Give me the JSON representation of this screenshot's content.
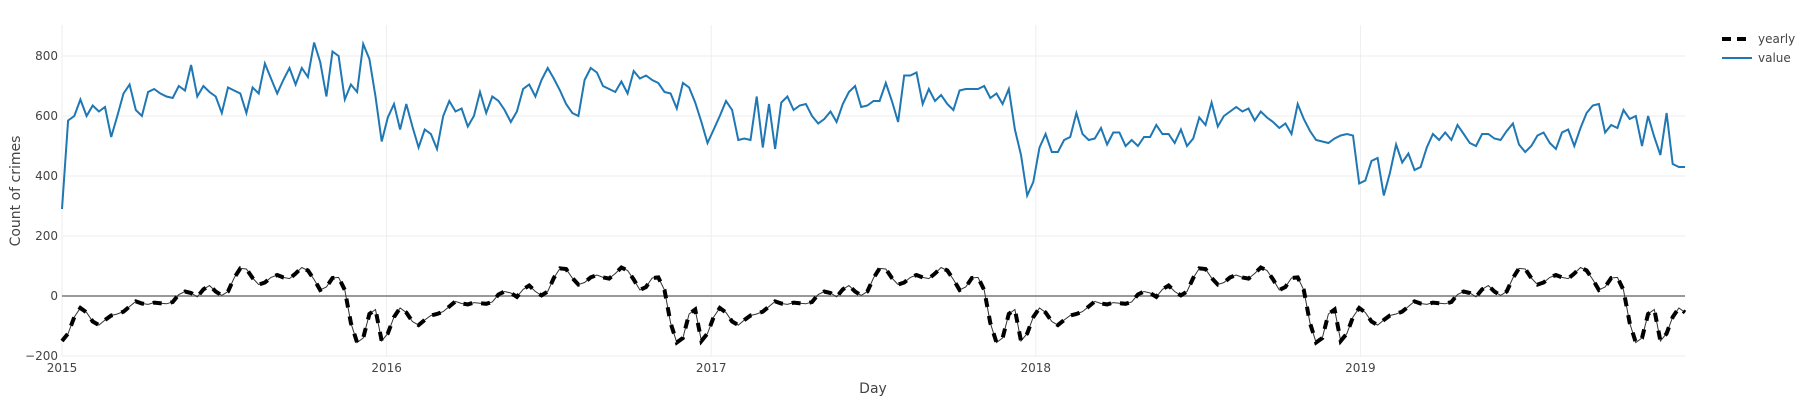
{
  "chart_data": {
    "type": "line",
    "title": "",
    "xlabel": "Day",
    "ylabel": "Count of crimes",
    "xlim": [
      "2015-01-01",
      "2019-12-31"
    ],
    "ylim": [
      -200,
      900
    ],
    "x_ticks": [
      "2015",
      "2016",
      "2017",
      "2018",
      "2019"
    ],
    "y_ticks": [
      -200,
      0,
      200,
      400,
      600,
      800
    ],
    "y_tick_labels": [
      "−200",
      "0",
      "200",
      "400",
      "600",
      "800"
    ],
    "grid": true,
    "zero_line": true,
    "legend_position": "top-right",
    "colors": {
      "value": "#1f77b4",
      "yearly": "#000000",
      "grid": "#eeeeee",
      "zero_line": "#999999",
      "text": "#444444"
    },
    "x_frequency": "weekly",
    "series": [
      {
        "name": "yearly",
        "style": "dashed-thick-black",
        "values_per_week_of_year": [
          -150,
          -125,
          -70,
          -40,
          -55,
          -85,
          -97,
          -80,
          -65,
          -60,
          -52,
          -35,
          -18,
          -25,
          -28,
          -22,
          -24,
          -26,
          -20,
          5,
          15,
          10,
          -3,
          22,
          35,
          15,
          2,
          15,
          60,
          92,
          90,
          60,
          38,
          45,
          62,
          70,
          62,
          58,
          75,
          95,
          85,
          55,
          20,
          30,
          60,
          62,
          20,
          -90,
          -155,
          -140,
          -60,
          -45
        ]
      },
      {
        "name": "value",
        "style": "solid-blue",
        "values": [
          290,
          585,
          600,
          655,
          600,
          635,
          615,
          630,
          530,
          600,
          675,
          705,
          620,
          600,
          680,
          690,
          675,
          665,
          660,
          700,
          685,
          770,
          665,
          700,
          680,
          665,
          610,
          695,
          685,
          675,
          610,
          695,
          675,
          775,
          725,
          675,
          720,
          760,
          705,
          760,
          730,
          845,
          780,
          665,
          815,
          800,
          655,
          705,
          680,
          840,
          790,
          665,
          515,
          595,
          640,
          555,
          640,
          565,
          495,
          555,
          540,
          490,
          600,
          650,
          615,
          625,
          565,
          600,
          680,
          610,
          665,
          650,
          620,
          580,
          615,
          690,
          705,
          665,
          720,
          760,
          725,
          685,
          640,
          610,
          600,
          720,
          760,
          745,
          700,
          690,
          680,
          715,
          675,
          750,
          725,
          735,
          720,
          710,
          680,
          675,
          625,
          710,
          695,
          645,
          580,
          510,
          555,
          600,
          650,
          620,
          520,
          525,
          520,
          665,
          495,
          640,
          490,
          645,
          665,
          620,
          635,
          640,
          600,
          575,
          590,
          615,
          580,
          640,
          680,
          700,
          630,
          635,
          650,
          650,
          710,
          650,
          580,
          735,
          735,
          745,
          640,
          690,
          650,
          670,
          640,
          620,
          685,
          690,
          690,
          690,
          700,
          660,
          675,
          640,
          690,
          555,
          470,
          335,
          380,
          495,
          540,
          480,
          480,
          520,
          530,
          610,
          540,
          520,
          525,
          560,
          505,
          545,
          545,
          500,
          520,
          500,
          530,
          530,
          570,
          540,
          540,
          510,
          555,
          500,
          525,
          595,
          570,
          645,
          565,
          600,
          615,
          630,
          615,
          625,
          585,
          615,
          595,
          580,
          560,
          575,
          540,
          640,
          590,
          550,
          520,
          515,
          510,
          525,
          535,
          540,
          535,
          375,
          385,
          450,
          460,
          335,
          410,
          505,
          445,
          475,
          420,
          430,
          495,
          540,
          520,
          545,
          520,
          570,
          540,
          510,
          500,
          540,
          540,
          525,
          520,
          550,
          575,
          505,
          480,
          500,
          535,
          545,
          510,
          490,
          545,
          555,
          500,
          560,
          610,
          635,
          640,
          545,
          570,
          560,
          620,
          590,
          600,
          500,
          600,
          530,
          470,
          610,
          440,
          430,
          430
        ]
      }
    ],
    "legend": [
      {
        "label": "yearly",
        "style": "dashed"
      },
      {
        "label": "value",
        "style": "solid"
      }
    ]
  }
}
